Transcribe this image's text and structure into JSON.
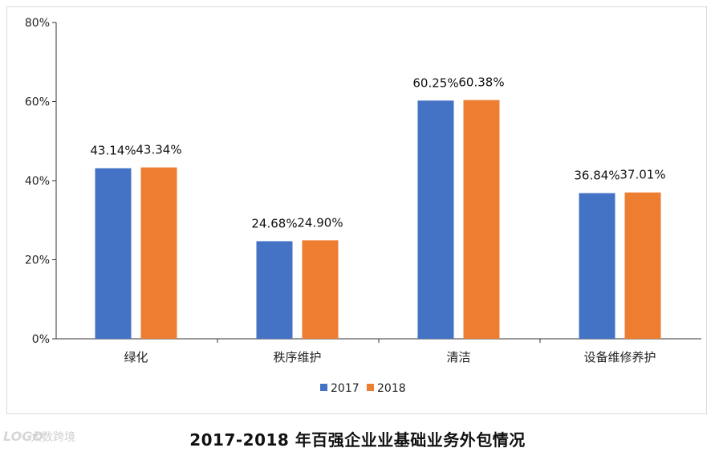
{
  "chart_data": {
    "type": "bar",
    "categories": [
      "绿化",
      "秩序维护",
      "清洁",
      "设备维修养护"
    ],
    "series": [
      {
        "name": "2017",
        "values": [
          43.14,
          24.68,
          60.25,
          36.84
        ],
        "labels": [
          "43.14%",
          "24.68%",
          "60.25%",
          "36.84%"
        ],
        "color": "#4472c4"
      },
      {
        "name": "2018",
        "values": [
          43.34,
          24.9,
          60.38,
          37.01
        ],
        "labels": [
          "43.34%",
          "24.90%",
          "60.38%",
          "37.01%"
        ],
        "color": "#ed7d31"
      }
    ],
    "ylim": [
      0,
      80
    ],
    "yticks": [
      0,
      20,
      40,
      60,
      80
    ],
    "ytick_labels": [
      "0%",
      "20%",
      "40%",
      "60%",
      "80%"
    ],
    "title": "2017-2018 年百强企业业基础业务外包情况",
    "legend_position": "bottom",
    "grid": false
  },
  "watermark": {
    "logo_text": "LOGO",
    "text": "大数跨境"
  }
}
